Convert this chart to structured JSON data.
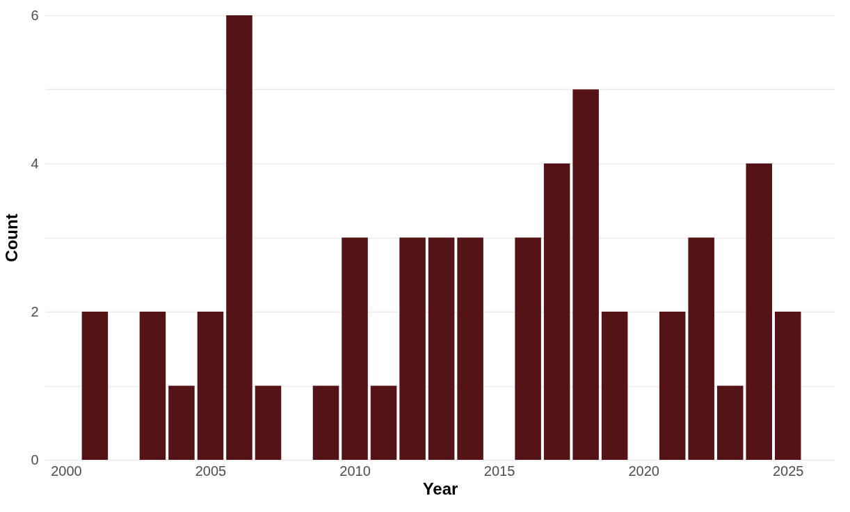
{
  "chart_data": {
    "type": "bar",
    "xlabel": "Year",
    "ylabel": "Count",
    "x": [
      2001,
      2003,
      2004,
      2005,
      2006,
      2007,
      2009,
      2010,
      2011,
      2012,
      2013,
      2014,
      2016,
      2017,
      2018,
      2019,
      2021,
      2022,
      2023,
      2024,
      2025
    ],
    "values": [
      2,
      2,
      1,
      2,
      6,
      1,
      1,
      3,
      1,
      3,
      3,
      3,
      3,
      4,
      5,
      2,
      2,
      3,
      1,
      4,
      2
    ],
    "color": "#541417",
    "xlim": [
      1999.4,
      2026.5
    ],
    "xticks": [
      2000,
      2005,
      2010,
      2015,
      2020,
      2025
    ],
    "ylim": [
      0,
      6
    ],
    "yticks": [
      0,
      {
        "value": 1,
        "label": null
      },
      2,
      {
        "value": 3,
        "label": null
      },
      4,
      {
        "value": 5,
        "label": null
      },
      6
    ],
    "grid": "y"
  }
}
